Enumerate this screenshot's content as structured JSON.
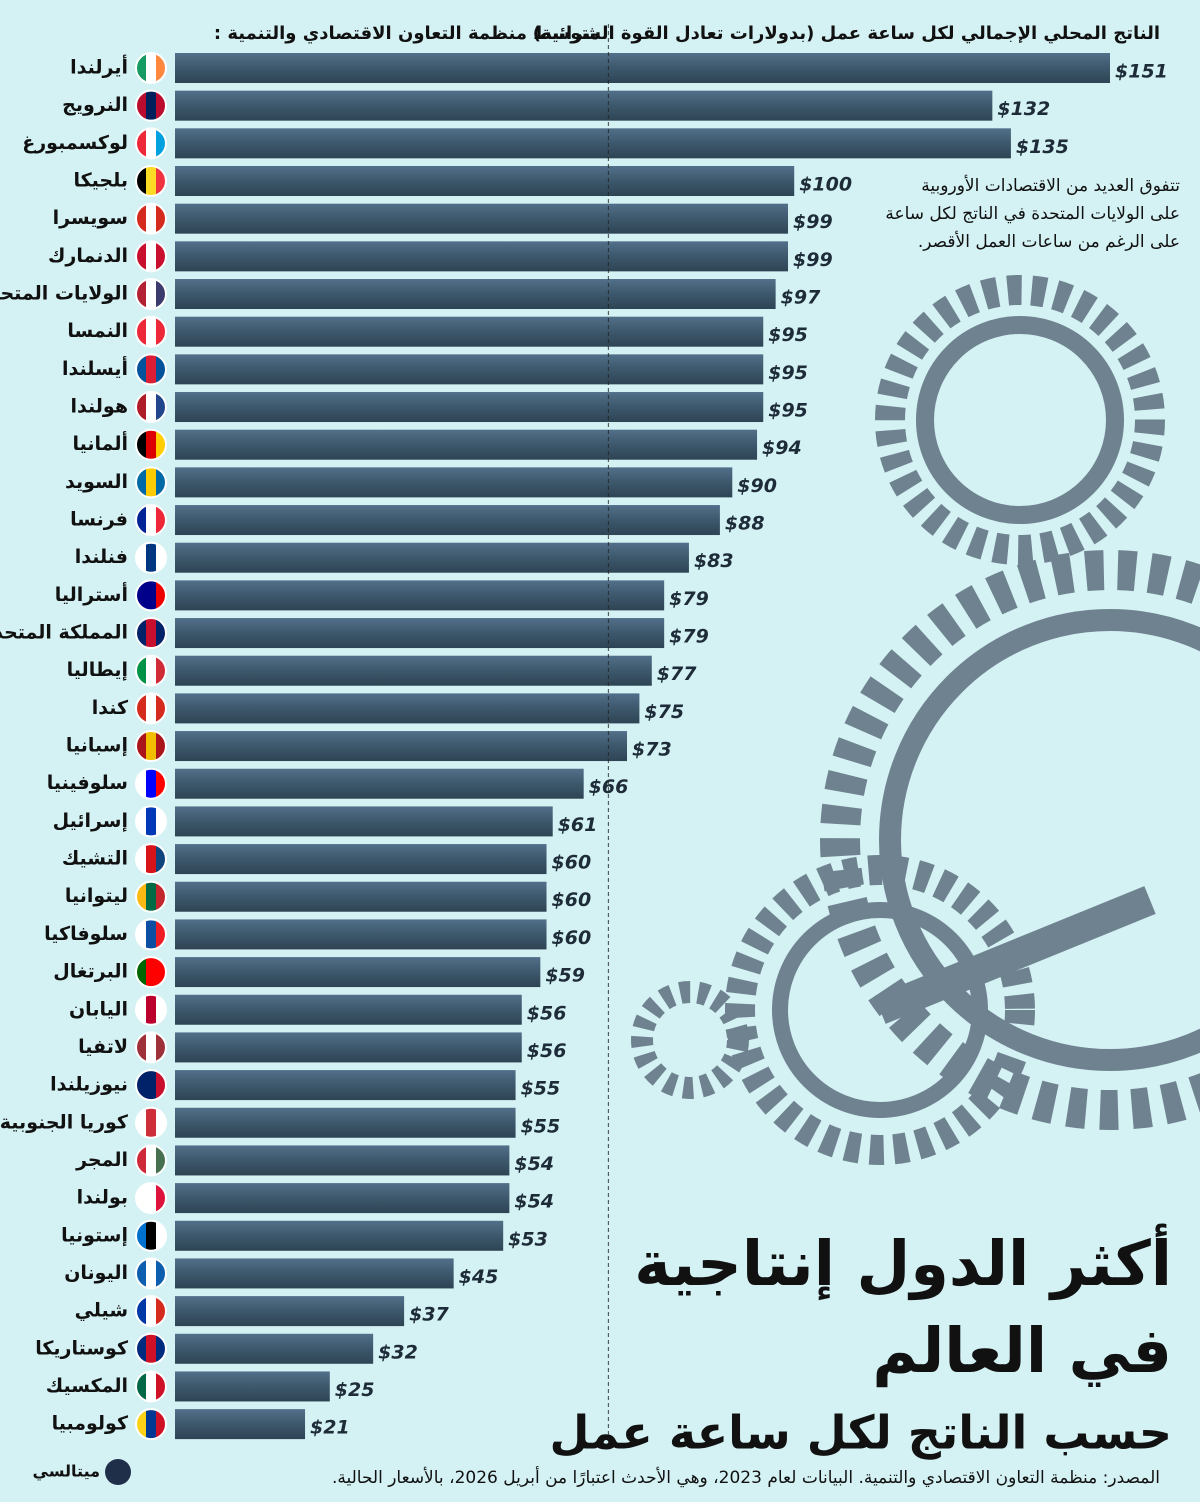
{
  "chart_data": {
    "type": "bar",
    "title_lines": [
      "أكثر الدول إنتاجية",
      "في العالم"
    ],
    "subtitle": "حسب الناتج لكل ساعة عمل",
    "value_axis_label": "الناتج المحلي الإجمالي لكل ساعة عمل (بدولارات تعادل القوة الشرائية)",
    "reference_line": {
      "label": "متوسط منظمة التعاون الاقتصادي والتنمية :",
      "value": 70
    },
    "annotation_lines": [
      "تتفوق العديد من الاقتصادات الأوروبية",
      "على الولايات المتحدة في الناتج لكل ساعة",
      "على الرغم من ساعات العمل الأقصر."
    ],
    "source": "المصدر: منظمة التعاون الاقتصادي والتنمية. البيانات لعام 2023، وهي الأحدث اعتبارًا من أبريل 2026، بالأسعار الحالية.",
    "brand": "ميتالسي",
    "color": "#3d586c",
    "categories": [
      "أيرلندا",
      "النرويج",
      "لوكسمبورغ",
      "بلجيكا",
      "سويسرا",
      "الدنمارك",
      "الولايات المتحدة",
      "النمسا",
      "أيسلندا",
      "هولندا",
      "ألمانيا",
      "السويد",
      "فرنسا",
      "فنلندا",
      "أستراليا",
      "المملكة المتحدة",
      "إيطاليا",
      "كندا",
      "إسبانيا",
      "سلوفينيا",
      "إسرائيل",
      "التشيك",
      "ليتوانيا",
      "سلوفاكيا",
      "البرتغال",
      "اليابان",
      "لاتفيا",
      "نيوزيلندا",
      "كوريا الجنوبية",
      "المجر",
      "بولندا",
      "إستونيا",
      "اليونان",
      "شيلي",
      "كوستاريكا",
      "المكسيك",
      "كولومبيا"
    ],
    "values": [
      151,
      132,
      135,
      100,
      99,
      99,
      97,
      95,
      95,
      95,
      94,
      90,
      88,
      83,
      79,
      79,
      77,
      75,
      73,
      66,
      61,
      60,
      60,
      60,
      59,
      56,
      56,
      55,
      55,
      54,
      54,
      53,
      45,
      37,
      32,
      25,
      21
    ],
    "value_labels": [
      "$151",
      "$132",
      "$135",
      "$100",
      "$99",
      "$99",
      "$97",
      "$95",
      "$95",
      "$95",
      "$94",
      "$90",
      "$88",
      "$83",
      "$79",
      "$79",
      "$77",
      "$75",
      "$73",
      "$66",
      "$61",
      "$60",
      "$60",
      "$60",
      "$59",
      "$56",
      "$56",
      "$55",
      "$55",
      "$54",
      "$54",
      "$53",
      "$45",
      "$37",
      "$32",
      "$25",
      "$21"
    ]
  }
}
